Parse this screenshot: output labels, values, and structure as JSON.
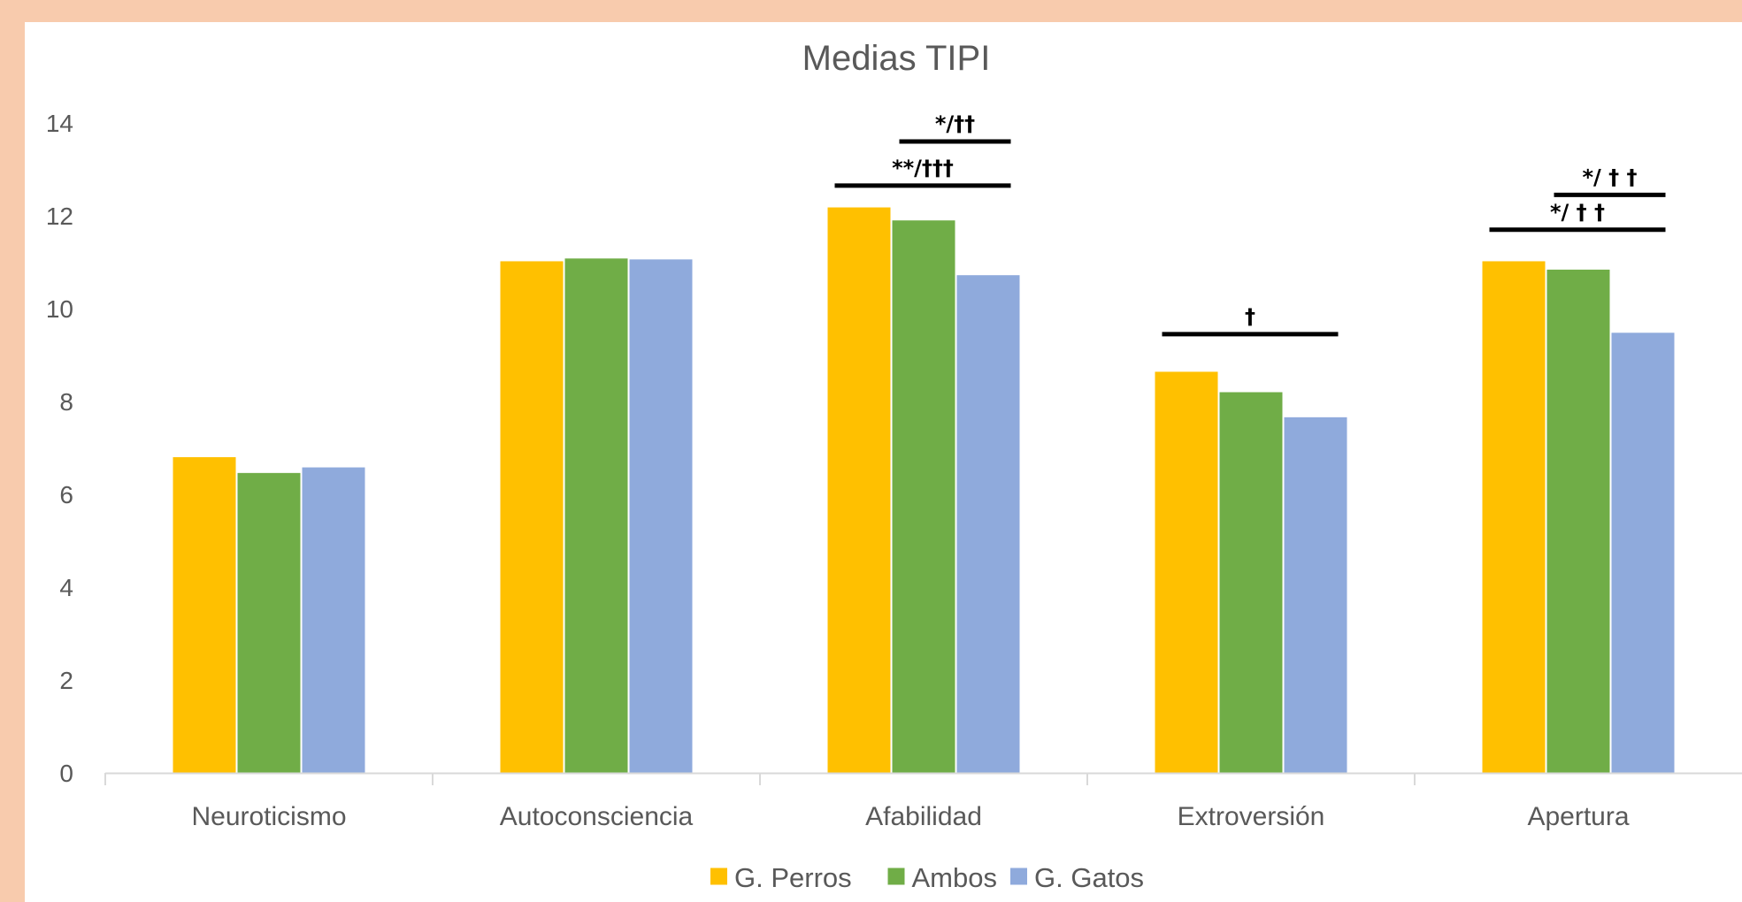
{
  "chart_data": {
    "type": "bar",
    "title": "Medias TIPI",
    "xlabel": "",
    "ylabel": "",
    "ylim": [
      0,
      14
    ],
    "yticks": [
      0,
      2,
      4,
      6,
      8,
      10,
      12,
      14
    ],
    "grid": false,
    "legend_position": "bottom",
    "categories": [
      "Neuroticismo",
      "Autoconsciencia",
      "Afabilidad",
      "Extroversión",
      "Apertura"
    ],
    "series": [
      {
        "name": "G. Perros",
        "color": "#ffc000",
        "values": [
          6.8,
          11.02,
          12.18,
          8.64,
          11.02
        ]
      },
      {
        "name": "Ambos",
        "color": "#70ad47",
        "values": [
          6.46,
          11.08,
          11.9,
          8.2,
          10.84
        ]
      },
      {
        "name": "G. Gatos",
        "color": "#8faadc",
        "values": [
          6.58,
          11.06,
          10.72,
          7.66,
          9.48
        ]
      }
    ],
    "significance": [
      {
        "category": 2,
        "from_series": 1,
        "to_series": 2,
        "y": 13.6,
        "label": "*/††"
      },
      {
        "category": 2,
        "from_series": 0,
        "to_series": 2,
        "y": 12.65,
        "label": "**/†††"
      },
      {
        "category": 3,
        "from_series": 0,
        "to_series": 2,
        "y": 9.45,
        "label": "†"
      },
      {
        "category": 4,
        "from_series": 1,
        "to_series": 2,
        "y": 12.45,
        "label": "*/ † †"
      },
      {
        "category": 4,
        "from_series": 0,
        "to_series": 2,
        "y": 11.7,
        "label": "*/ † †"
      }
    ]
  }
}
